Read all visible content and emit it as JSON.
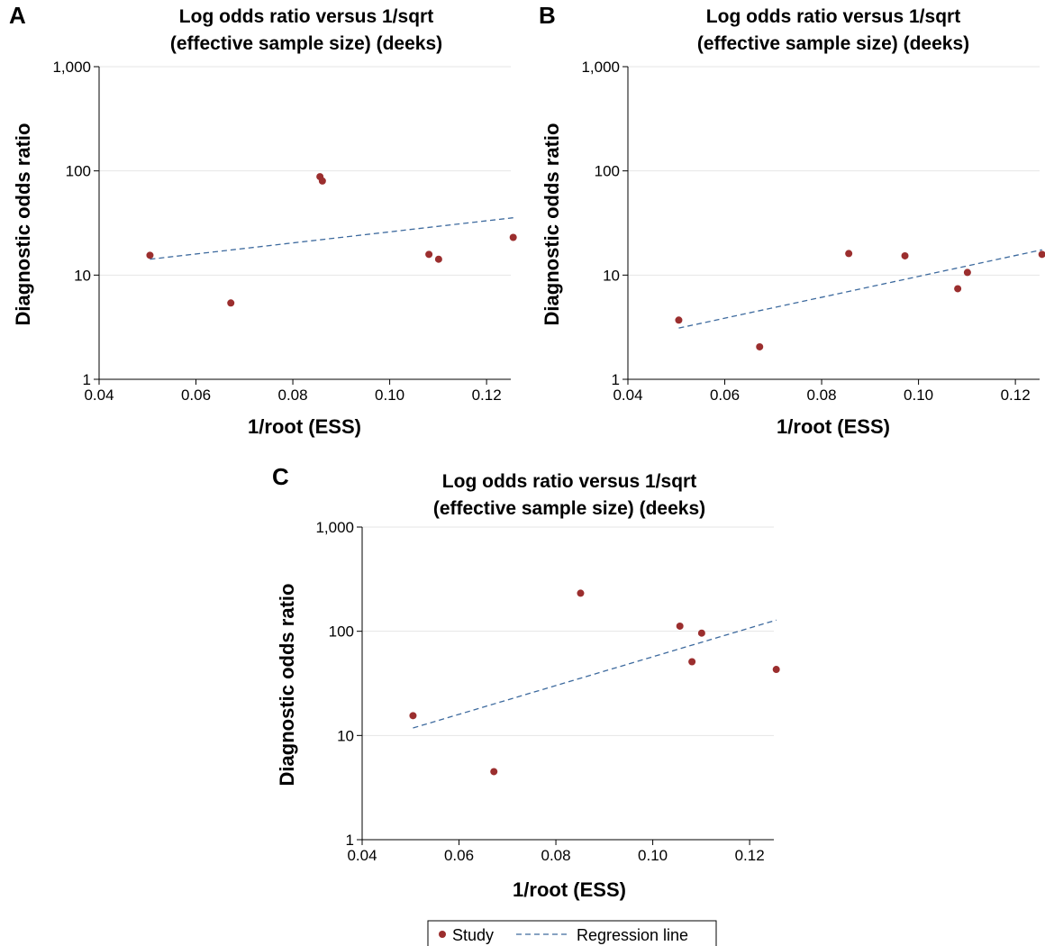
{
  "chart_data": [
    {
      "panel": "A",
      "type": "scatter",
      "title_lines": [
        "Log odds ratio versus 1/sqrt",
        "(effective sample size) (deeks)"
      ],
      "xlabel": "1/root (ESS)",
      "ylabel": "Diagnostic odds ratio",
      "xlim": [
        0.04,
        0.125
      ],
      "ylim": [
        1,
        1000
      ],
      "y_scale": "log",
      "x_ticks": [
        0.04,
        0.06,
        0.08,
        0.1,
        0.12
      ],
      "x_tick_labels": [
        "0.04",
        "0.06",
        "0.08",
        "0.10",
        "0.12"
      ],
      "y_ticks": [
        1,
        10,
        100,
        1000
      ],
      "y_tick_labels": [
        "1",
        "10",
        "100",
        "1,000"
      ],
      "grid": "horizontal",
      "series": [
        {
          "name": "Study",
          "kind": "points",
          "color": "#9b2e2e",
          "x": [
            0.0505,
            0.0672,
            0.0856,
            0.0861,
            0.1081,
            0.1101,
            0.1255
          ],
          "y": [
            15.5,
            5.4,
            88,
            80,
            15.8,
            14.2,
            23
          ]
        },
        {
          "name": "Regression line",
          "kind": "line",
          "color": "#3d6a9e",
          "x": [
            0.0505,
            0.1255
          ],
          "y": [
            14.2,
            35.5
          ]
        }
      ]
    },
    {
      "panel": "B",
      "type": "scatter",
      "title_lines": [
        "Log odds ratio versus 1/sqrt",
        "(effective sample size) (deeks)"
      ],
      "xlabel": "1/root (ESS)",
      "ylabel": "Diagnostic odds ratio",
      "xlim": [
        0.04,
        0.125
      ],
      "ylim": [
        1,
        1000
      ],
      "y_scale": "log",
      "x_ticks": [
        0.04,
        0.06,
        0.08,
        0.1,
        0.12
      ],
      "x_tick_labels": [
        "0.04",
        "0.06",
        "0.08",
        "0.10",
        "0.12"
      ],
      "y_ticks": [
        1,
        10,
        100,
        1000
      ],
      "y_tick_labels": [
        "1",
        "10",
        "100",
        "1,000"
      ],
      "grid": "horizontal",
      "series": [
        {
          "name": "Study",
          "kind": "points",
          "color": "#9b2e2e",
          "x": [
            0.0505,
            0.0672,
            0.0856,
            0.0972,
            0.1081,
            0.1101,
            0.1255
          ],
          "y": [
            3.7,
            2.05,
            16.1,
            15.3,
            7.4,
            10.6,
            15.8
          ]
        },
        {
          "name": "Regression line",
          "kind": "line",
          "color": "#3d6a9e",
          "x": [
            0.0505,
            0.1255
          ],
          "y": [
            3.1,
            17.5
          ]
        }
      ]
    },
    {
      "panel": "C",
      "type": "scatter",
      "title_lines": [
        "Log odds ratio versus 1/sqrt",
        "(effective sample size) (deeks)"
      ],
      "xlabel": "1/root (ESS)",
      "ylabel": "Diagnostic odds ratio",
      "xlim": [
        0.04,
        0.125
      ],
      "ylim": [
        1,
        1000
      ],
      "y_scale": "log",
      "x_ticks": [
        0.04,
        0.06,
        0.08,
        0.1,
        0.12
      ],
      "x_tick_labels": [
        "0.04",
        "0.06",
        "0.08",
        "0.10",
        "0.12"
      ],
      "y_ticks": [
        1,
        10,
        100,
        1000
      ],
      "y_tick_labels": [
        "1",
        "10",
        "100",
        "1,000"
      ],
      "grid": "horizontal",
      "series": [
        {
          "name": "Study",
          "kind": "points",
          "color": "#9b2e2e",
          "x": [
            0.0505,
            0.0672,
            0.0851,
            0.1056,
            0.1081,
            0.1101,
            0.1255
          ],
          "y": [
            15.5,
            4.5,
            232,
            112,
            51,
            96,
            43
          ]
        },
        {
          "name": "Regression line",
          "kind": "line",
          "color": "#3d6a9e",
          "x": [
            0.0505,
            0.1255
          ],
          "y": [
            11.8,
            128
          ]
        }
      ]
    }
  ],
  "legend": {
    "placement": "bottom-center",
    "items": [
      {
        "label": "Study",
        "kind": "marker",
        "color": "#9b2e2e"
      },
      {
        "label": "Regression line",
        "kind": "dashed-line",
        "color": "#3d6a9e"
      }
    ]
  }
}
